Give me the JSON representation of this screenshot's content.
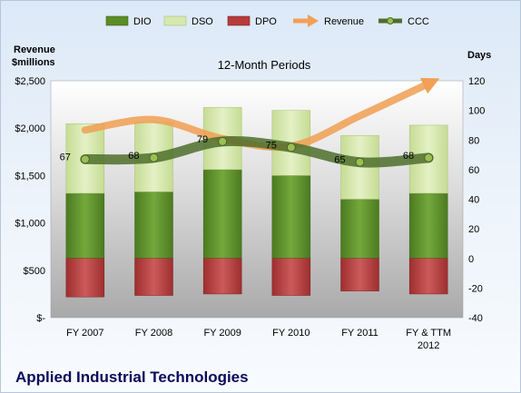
{
  "chart_data": {
    "type": "bar",
    "title": "12-Month Periods",
    "company": "Applied Industrial Technologies",
    "y_left_label_line1": "Revenue",
    "y_left_label_line2": "$millions",
    "y_right_label": "Days",
    "categories": [
      "FY 2007",
      "FY 2008",
      "FY 2009",
      "FY 2010",
      "FY 2011",
      "FY & TTM 2012"
    ],
    "category_lines": [
      [
        "FY 2007"
      ],
      [
        "FY 2008"
      ],
      [
        "FY 2009"
      ],
      [
        "FY 2010"
      ],
      [
        "FY 2011"
      ],
      [
        "FY & TTM",
        "2012"
      ]
    ],
    "left_axis": {
      "min": 0,
      "max": 2500,
      "step": 500,
      "tick_labels": [
        "$-",
        "$500",
        "$1,000",
        "$1,500",
        "$2,000",
        "$2,500"
      ]
    },
    "right_axis": {
      "min": -40,
      "max": 120,
      "step": 20,
      "tick_labels": [
        "-40",
        "-20",
        "0",
        "20",
        "40",
        "60",
        "80",
        "100",
        "120"
      ]
    },
    "series": [
      {
        "name": "DIO",
        "axis": "right",
        "kind": "stacked-bar",
        "color": "#5a8c28",
        "values": [
          44,
          45,
          60,
          56,
          40,
          44
        ]
      },
      {
        "name": "DSO",
        "axis": "right",
        "kind": "stacked-bar",
        "color": "#d6e8ae",
        "values": [
          47,
          47,
          42,
          44,
          43,
          46
        ]
      },
      {
        "name": "DPO",
        "axis": "right",
        "kind": "stacked-bar-negative",
        "color": "#b73b3b",
        "values": [
          -26,
          -25,
          -24,
          -25,
          -22,
          -24
        ]
      },
      {
        "name": "Revenue",
        "axis": "left",
        "kind": "line",
        "color": "#f0a057",
        "values": [
          1980,
          2090,
          1890,
          1810,
          2130,
          2470
        ]
      },
      {
        "name": "CCC",
        "axis": "right",
        "kind": "line",
        "color": "#4f6e2c",
        "values": [
          67,
          68,
          79,
          75,
          65,
          68
        ]
      }
    ],
    "data_labels": [
      "67",
      "68",
      "79",
      "75",
      "65",
      "68"
    ],
    "legend": {
      "placement": "top",
      "items": [
        "DIO",
        "DSO",
        "DPO",
        "Revenue",
        "CCC"
      ]
    },
    "grid": false
  }
}
